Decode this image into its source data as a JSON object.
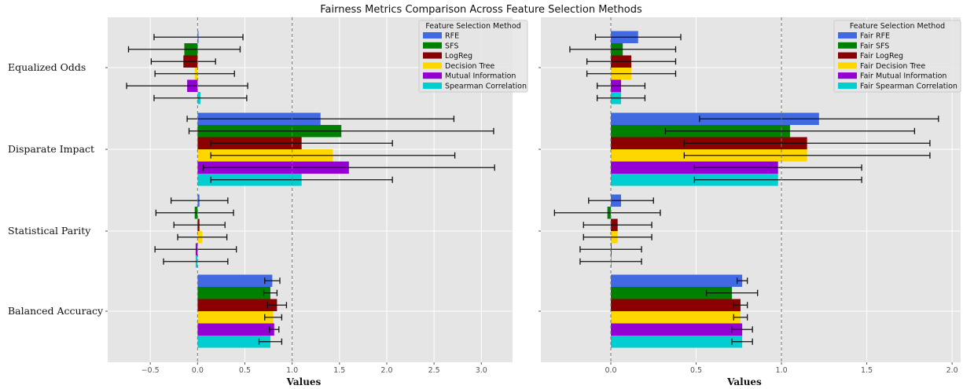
{
  "title": "Fairness Metrics Comparison Across Feature Selection Methods",
  "chart_data": [
    {
      "type": "bar",
      "orientation": "horizontal",
      "categories": [
        "Equalized Odds",
        "Disparate Impact",
        "Statistical Parity",
        "Balanced Accuracy"
      ],
      "xlabel": "Values",
      "xlim": [
        -0.95,
        3.33
      ],
      "xticks": [
        "−0.5",
        "0.0",
        "0.5",
        "1.0",
        "1.5",
        "2.0",
        "2.5",
        "3.0"
      ],
      "xtick_values": [
        -0.5,
        0,
        0.5,
        1.0,
        1.5,
        2.0,
        2.5,
        3.0
      ],
      "reference_lines": [
        0,
        1
      ],
      "grid": true,
      "legend": {
        "title": "Feature Selection Method",
        "position": "top-right"
      },
      "series": [
        {
          "name": "RFE",
          "color": "#4169E1",
          "values": [
            0.01,
            1.3,
            0.02,
            0.79
          ],
          "errors": [
            0.47,
            1.41,
            0.3,
            0.08
          ]
        },
        {
          "name": "SFS",
          "color": "#008000",
          "values": [
            -0.14,
            1.52,
            -0.03,
            0.77
          ],
          "errors": [
            0.59,
            1.61,
            0.41,
            0.07
          ]
        },
        {
          "name": "LogReg",
          "color": "#8B0000",
          "values": [
            -0.15,
            1.1,
            0.02,
            0.84
          ],
          "errors": [
            0.34,
            0.96,
            0.27,
            0.1
          ]
        },
        {
          "name": "Decision Tree",
          "color": "#FFD700",
          "values": [
            -0.03,
            1.43,
            0.05,
            0.8
          ],
          "errors": [
            0.42,
            1.29,
            0.26,
            0.09
          ]
        },
        {
          "name": "Mutual Information",
          "color": "#9400D3",
          "values": [
            -0.11,
            1.6,
            -0.02,
            0.81
          ],
          "errors": [
            0.64,
            1.54,
            0.43,
            0.05
          ]
        },
        {
          "name": "Spearman Correlation",
          "color": "#00CED1",
          "values": [
            0.03,
            1.1,
            -0.02,
            0.77
          ],
          "errors": [
            0.49,
            0.96,
            0.34,
            0.12
          ]
        }
      ]
    },
    {
      "type": "bar",
      "orientation": "horizontal",
      "categories": [
        "Equalized Odds",
        "Disparate Impact",
        "Statistical Parity",
        "Balanced Accuracy"
      ],
      "xlabel": "Values",
      "xlim": [
        -0.41,
        2.05
      ],
      "xticks": [
        "0.0",
        "0.5",
        "1.0",
        "1.5",
        "2.0"
      ],
      "xtick_values": [
        0,
        0.5,
        1.0,
        1.5,
        2.0
      ],
      "reference_lines": [
        0,
        1
      ],
      "grid": true,
      "legend": {
        "title": "Feature Selection Method",
        "position": "top-right"
      },
      "series": [
        {
          "name": "Fair RFE",
          "color": "#4169E1",
          "values": [
            0.16,
            1.22,
            0.06,
            0.77
          ],
          "errors": [
            0.25,
            0.7,
            0.19,
            0.03
          ]
        },
        {
          "name": "Fair SFS",
          "color": "#008000",
          "values": [
            0.07,
            1.05,
            -0.02,
            0.71
          ],
          "errors": [
            0.31,
            0.73,
            0.31,
            0.15
          ]
        },
        {
          "name": "Fair LogReg",
          "color": "#8B0000",
          "values": [
            0.12,
            1.15,
            0.04,
            0.76
          ],
          "errors": [
            0.26,
            0.72,
            0.2,
            0.04
          ]
        },
        {
          "name": "Fair Decision Tree",
          "color": "#FFD700",
          "values": [
            0.12,
            1.15,
            0.04,
            0.76
          ],
          "errors": [
            0.26,
            0.72,
            0.2,
            0.04
          ]
        },
        {
          "name": "Fair Mutual Information",
          "color": "#9400D3",
          "values": [
            0.06,
            0.98,
            0.0,
            0.77
          ],
          "errors": [
            0.14,
            0.49,
            0.18,
            0.06
          ]
        },
        {
          "name": "Fair Spearman Correlation",
          "color": "#00CED1",
          "values": [
            0.06,
            0.98,
            0.0,
            0.77
          ],
          "errors": [
            0.14,
            0.49,
            0.18,
            0.06
          ]
        }
      ]
    }
  ]
}
